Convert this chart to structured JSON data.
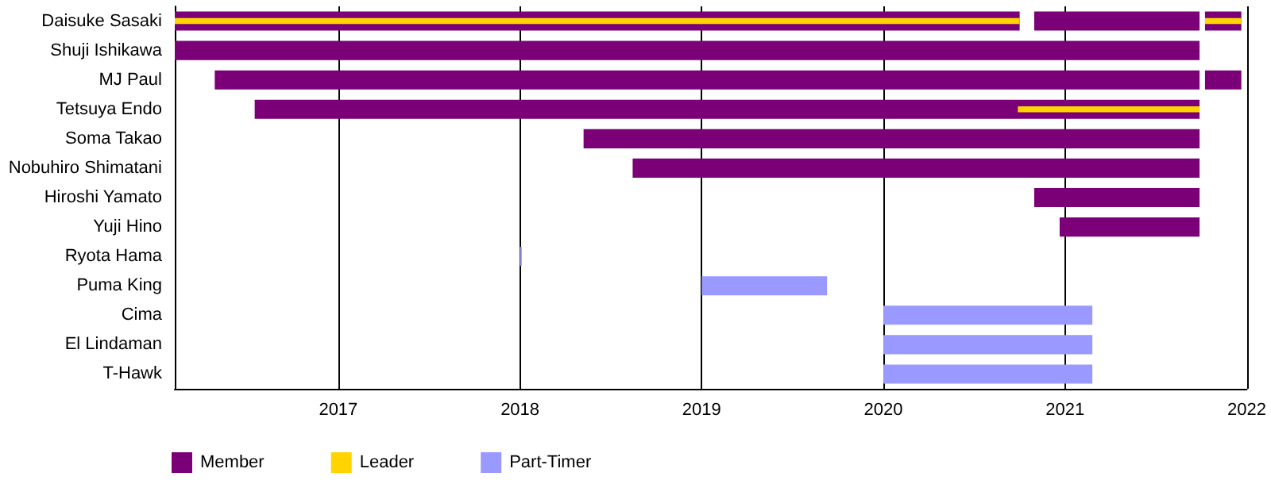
{
  "chart_data": {
    "type": "bar",
    "orientation": "horizontal",
    "categories": [
      "Daisuke Sasaki",
      "Shuji Ishikawa",
      "MJ Paul",
      "Tetsuya Endo",
      "Soma Takao",
      "Nobuhiro Shimatani",
      "Hiroshi Yamato",
      "Yuji Hino",
      "Ryota Hama",
      "Puma King",
      "Cima",
      "El Lindaman",
      "T-Hawk"
    ],
    "series": [
      {
        "name": "Member",
        "color": "#7b0078",
        "base": [
          2016.1,
          2016.1,
          2016.32,
          2016.54,
          2018.35,
          2018.62,
          2020.83,
          2020.97,
          null,
          null,
          null,
          null,
          null
        ],
        "values": [
          4.65,
          5.64,
          5.42,
          5.2,
          3.39,
          3.12,
          0.91,
          0.77,
          null,
          null,
          null,
          null,
          null
        ]
      },
      {
        "color": "#7b0078",
        "base": [
          2020.83,
          null,
          null,
          null,
          null,
          null,
          null,
          null,
          null,
          null,
          null,
          null,
          null
        ],
        "values": [
          0.91,
          null,
          null,
          null,
          null,
          null,
          null,
          null,
          null,
          null,
          null,
          null,
          null
        ]
      },
      {
        "color": "#7b0078",
        "base": [
          2021.77,
          null,
          2021.77,
          null,
          null,
          null,
          null,
          null,
          null,
          null,
          null,
          null,
          null
        ],
        "values": [
          0.2,
          null,
          0.2,
          null,
          null,
          null,
          null,
          null,
          null,
          null,
          null,
          null,
          null
        ]
      },
      {
        "name": "Leader",
        "color": "#ffd400",
        "base": [
          2016.1,
          null,
          null,
          2020.74,
          null,
          null,
          null,
          null,
          null,
          null,
          null,
          null,
          null
        ],
        "values": [
          4.65,
          null,
          null,
          1.0,
          null,
          null,
          null,
          null,
          null,
          null,
          null,
          null,
          null
        ]
      },
      {
        "color": "#ffd400",
        "base": [
          2021.77,
          null,
          null,
          null,
          null,
          null,
          null,
          null,
          null,
          null,
          null,
          null,
          null
        ],
        "values": [
          0.2,
          null,
          null,
          null,
          null,
          null,
          null,
          null,
          null,
          null,
          null,
          null,
          null
        ]
      },
      {
        "name": "Part-Timer",
        "color": "#9999ff",
        "base": [
          null,
          null,
          null,
          null,
          null,
          null,
          null,
          null,
          2018.0,
          2019.0,
          2020.0,
          2020.0,
          2020.0
        ],
        "values": [
          null,
          null,
          null,
          null,
          null,
          null,
          null,
          null,
          0.01,
          0.69,
          1.15,
          1.15,
          1.15
        ]
      }
    ],
    "xlim": [
      2016.1,
      2022
    ],
    "xticks": [
      2017,
      2018,
      2019,
      2020,
      2021,
      2022
    ],
    "grid": "x",
    "legend": "bottom left"
  }
}
